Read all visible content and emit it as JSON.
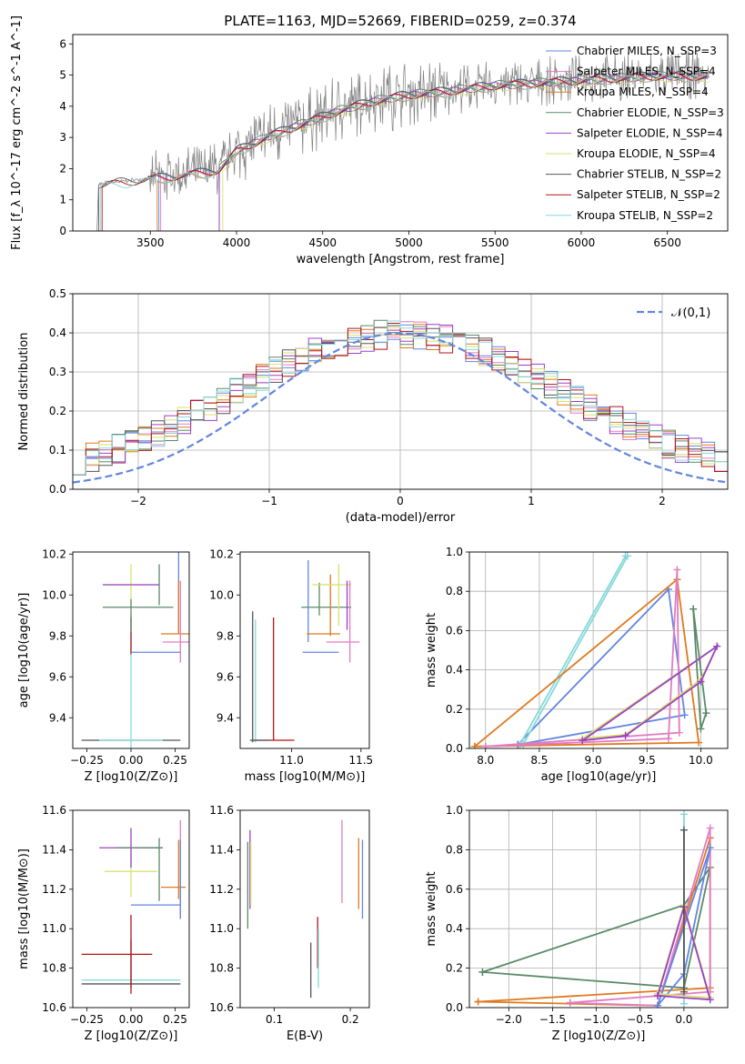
{
  "title": "PLATE=1163, MJD=52669, FIBERID=0259, z=0.374",
  "colors": {
    "chabrier_miles": "#6286e0",
    "salpeter_miles": "#e27bc2",
    "kroupa_miles": "#e0791f",
    "chabrier_elodie": "#5a8a68",
    "salpeter_elodie": "#9b40c8",
    "kroupa_elodie": "#d7e16a",
    "chabrier_stelib": "#555555",
    "salpeter_stelib": "#b01515",
    "kroupa_stelib": "#86d8d8",
    "data": "#808080",
    "grid": "#b0b0b0"
  },
  "legend_entries": [
    "Chabrier MILES, N_SSP=3",
    "Salpeter MILES, N_SSP=4",
    "Kroupa MILES, N_SSP=4",
    "Chabrier ELODIE, N_SSP=3",
    "Salpeter ELODIE, N_SSP=4",
    "Kroupa ELODIE, N_SSP=4",
    "Chabrier STELIB, N_SSP=2",
    "Salpeter STELIB, N_SSP=2",
    "Kroupa STELIB, N_SSP=2"
  ],
  "chart_data": [
    {
      "id": "spectrum",
      "type": "line",
      "xlabel": "wavelength [Angstrom, rest frame]",
      "ylabel": "Flux [f_λ 10^-17 erg cm^-2 s^-1 A^-1]",
      "xlim": [
        3050,
        6850
      ],
      "ylim": [
        0,
        6.3
      ],
      "xticks": [
        3500,
        4000,
        4500,
        5000,
        5500,
        6000,
        6500
      ],
      "yticks": [
        0,
        1,
        2,
        3,
        4,
        5,
        6
      ],
      "grid": false,
      "legend_position": "top-right",
      "continuum": {
        "x": [
          3200,
          3350,
          3500,
          3650,
          3800,
          3900,
          4000,
          4200,
          4400,
          4600,
          4800,
          5000,
          5200,
          5500,
          5800,
          6100,
          6400,
          6750
        ],
        "y": [
          1.5,
          1.6,
          1.7,
          1.8,
          1.9,
          2.0,
          2.6,
          3.1,
          3.5,
          3.9,
          4.2,
          4.4,
          4.5,
          4.7,
          4.8,
          4.9,
          5.0,
          5.0
        ]
      },
      "model_start_x": [
        3550,
        3560,
        3540,
        3900,
        3900,
        3920,
        3200,
        3220,
        3210
      ]
    },
    {
      "id": "residuals",
      "type": "line",
      "xlabel": "(data-model)/error",
      "ylabel": "Normed distribution",
      "xlim": [
        -2.5,
        2.5
      ],
      "ylim": [
        0,
        0.5
      ],
      "xticks": [
        -2,
        -1,
        0,
        1,
        2
      ],
      "yticks": [
        0,
        0.1,
        0.2,
        0.3,
        0.4,
        0.5
      ],
      "grid": true,
      "legend_position": "top-right",
      "gaussian_label": "𝒩(0,1)",
      "bin_width": 0.1
    },
    {
      "id": "age_vs_Z",
      "type": "scatter",
      "xlabel": "Z [log10(Z/Z⊙)]",
      "ylabel": "age [log10(age/yr)]",
      "xlim": [
        -0.33,
        0.33
      ],
      "ylim": [
        9.25,
        10.21
      ],
      "xticks": [
        -0.25,
        0.0,
        0.25
      ],
      "yticks": [
        9.4,
        9.6,
        9.8,
        10.0,
        10.2
      ],
      "grid": false,
      "points": [
        {
          "x": 0.0,
          "xerr": 0.28,
          "y": 9.29,
          "yerr": 0.0,
          "c": "chabrier_stelib"
        },
        {
          "x": 0.0,
          "xerr": 0.18,
          "y": 9.29,
          "yerr": 0.0,
          "c": "kroupa_stelib"
        },
        {
          "x": 0.0,
          "xerr": 0.0,
          "y": 9.29,
          "yerr": 0.61,
          "c": "kroupa_stelib"
        },
        {
          "x": 0.0,
          "xerr": 0.0,
          "y": 9.8,
          "yerr": 0.09,
          "c": "salpeter_stelib"
        },
        {
          "x": 0.27,
          "xerr": 0.0,
          "y": 10.02,
          "yerr": 0.2,
          "c": "chabrier_miles"
        },
        {
          "x": 0.0,
          "xerr": 0.16,
          "y": 10.05,
          "yerr": 0.1,
          "c": "kroupa_elodie"
        },
        {
          "x": 0.0,
          "xerr": 0.16,
          "y": 10.05,
          "yerr": 0.0,
          "c": "salpeter_elodie"
        },
        {
          "x": 0.16,
          "xerr": 0.0,
          "y": 10.05,
          "yerr": 0.1,
          "c": "chabrier_elodie"
        },
        {
          "x": 0.0,
          "xerr": 0.0,
          "y": 9.9,
          "yerr": 0.08,
          "c": "chabrier_elodie"
        },
        {
          "x": 0.04,
          "xerr": 0.2,
          "y": 9.94,
          "yerr": 0.0,
          "c": "chabrier_elodie"
        },
        {
          "x": 0.27,
          "xerr": 0.0,
          "y": 9.94,
          "yerr": 0.13,
          "c": "kroupa_miles"
        },
        {
          "x": 0.27,
          "xerr": 0.1,
          "y": 9.81,
          "yerr": 0.0,
          "c": "kroupa_miles"
        },
        {
          "x": 0.27,
          "xerr": 0.0,
          "y": 9.81,
          "yerr": 0.0,
          "c": "kroupa_elodie"
        },
        {
          "x": 0.28,
          "xerr": 0.1,
          "y": 9.77,
          "yerr": 0.0,
          "c": "salpeter_miles"
        },
        {
          "x": 0.28,
          "xerr": 0.0,
          "y": 9.87,
          "yerr": 0.2,
          "c": "salpeter_miles"
        },
        {
          "x": 0.14,
          "xerr": 0.14,
          "y": 9.72,
          "yerr": 0.0,
          "c": "chabrier_miles"
        }
      ]
    },
    {
      "id": "age_vs_mass",
      "type": "scatter",
      "xlabel": "mass [log10(M/M⊙)]",
      "ylabel": "",
      "xlim": [
        10.63,
        11.56
      ],
      "ylim": [
        9.25,
        10.21
      ],
      "xticks": [
        11.0,
        11.5
      ],
      "yticks": [
        9.4,
        9.6,
        9.8,
        10.0,
        10.2
      ],
      "grid": false,
      "points": [
        {
          "x": 10.72,
          "xerr": 0.0,
          "y": 9.6,
          "yerr": 0.32,
          "c": "chabrier_stelib"
        },
        {
          "x": 10.74,
          "xerr": 0.0,
          "y": 9.58,
          "yerr": 0.3,
          "c": "kroupa_stelib"
        },
        {
          "x": 10.87,
          "xerr": 0.0,
          "y": 9.59,
          "yerr": 0.3,
          "c": "salpeter_stelib"
        },
        {
          "x": 10.87,
          "xerr": 0.15,
          "y": 9.29,
          "yerr": 0.0,
          "c": "salpeter_stelib"
        },
        {
          "x": 10.77,
          "xerr": 0.07,
          "y": 9.29,
          "yerr": 0.0,
          "c": "chabrier_stelib"
        },
        {
          "x": 11.12,
          "xerr": 0.0,
          "y": 9.97,
          "yerr": 0.2,
          "c": "chabrier_miles"
        },
        {
          "x": 11.21,
          "xerr": 0.13,
          "y": 9.72,
          "yerr": 0.0,
          "c": "chabrier_miles"
        },
        {
          "x": 11.2,
          "xerr": 0.0,
          "y": 9.98,
          "yerr": 0.08,
          "c": "chabrier_elodie"
        },
        {
          "x": 11.25,
          "xerr": 0.18,
          "y": 9.94,
          "yerr": 0.0,
          "c": "chabrier_elodie"
        },
        {
          "x": 11.28,
          "xerr": 0.0,
          "y": 9.95,
          "yerr": 0.15,
          "c": "kroupa_miles"
        },
        {
          "x": 11.23,
          "xerr": 0.12,
          "y": 9.81,
          "yerr": 0.0,
          "c": "kroupa_miles"
        },
        {
          "x": 11.29,
          "xerr": 0.14,
          "y": 10.05,
          "yerr": 0.0,
          "c": "kroupa_elodie"
        },
        {
          "x": 11.34,
          "xerr": 0.0,
          "y": 10.0,
          "yerr": 0.15,
          "c": "kroupa_elodie"
        },
        {
          "x": 11.4,
          "xerr": 0.0,
          "y": 9.95,
          "yerr": 0.12,
          "c": "salpeter_elodie"
        },
        {
          "x": 11.42,
          "xerr": 0.0,
          "y": 9.87,
          "yerr": 0.2,
          "c": "salpeter_miles"
        },
        {
          "x": 11.37,
          "xerr": 0.12,
          "y": 9.77,
          "yerr": 0.0,
          "c": "salpeter_miles"
        }
      ]
    },
    {
      "id": "weight_vs_age",
      "type": "line",
      "xlabel": "age [log10(age/yr)]",
      "ylabel": "mass weight",
      "xlim": [
        7.85,
        10.25
      ],
      "ylim": [
        0,
        1.0
      ],
      "xticks": [
        8.0,
        8.5,
        9.0,
        9.5,
        10.0
      ],
      "yticks": [
        0.0,
        0.2,
        0.4,
        0.6,
        0.8,
        1.0
      ],
      "grid": true,
      "series": [
        {
          "c": "chabrier_miles",
          "x": [
            8.3,
            9.7,
            9.85,
            8.3
          ],
          "y": [
            0.02,
            0.81,
            0.17,
            0.02
          ]
        },
        {
          "c": "kroupa_stelib",
          "x": [
            8.32,
            9.3,
            8.32
          ],
          "y": [
            0.02,
            0.98,
            0.02
          ]
        },
        {
          "c": "kroupa_stelib",
          "x": [
            8.35,
            9.32,
            8.35
          ],
          "y": [
            0.02,
            0.98,
            0.02
          ]
        },
        {
          "c": "kroupa_miles",
          "x": [
            7.9,
            9.78,
            9.98,
            7.9
          ],
          "y": [
            0.01,
            0.86,
            0.03,
            0.01
          ]
        },
        {
          "c": "salpeter_miles",
          "x": [
            8.0,
            9.7,
            9.78,
            9.8,
            8.0
          ],
          "y": [
            0.01,
            0.05,
            0.91,
            0.08,
            0.01
          ]
        },
        {
          "c": "chabrier_elodie",
          "x": [
            9.93,
            10.0,
            10.05,
            9.93
          ],
          "y": [
            0.71,
            0.1,
            0.18,
            0.71
          ]
        },
        {
          "c": "kroupa_elodie",
          "x": [
            8.9,
            9.3,
            10.0,
            10.15,
            8.9
          ],
          "y": [
            0.05,
            0.07,
            0.35,
            0.52,
            0.05
          ]
        },
        {
          "c": "salpeter_elodie",
          "x": [
            8.9,
            9.3,
            10.0,
            10.15,
            8.9
          ],
          "y": [
            0.04,
            0.065,
            0.34,
            0.52,
            0.04
          ]
        }
      ]
    },
    {
      "id": "mass_vs_Z",
      "type": "scatter",
      "xlabel": "Z [log10(Z/Z⊙)]",
      "ylabel": "mass [log10(M/M⊙)]",
      "xlim": [
        -0.33,
        0.33
      ],
      "ylim": [
        10.6,
        11.6
      ],
      "xticks": [
        -0.25,
        0.0,
        0.25
      ],
      "yticks": [
        10.6,
        10.8,
        11.0,
        11.2,
        11.4,
        11.6
      ],
      "grid": false,
      "points": [
        {
          "x": 0.0,
          "xerr": 0.28,
          "y": 10.72,
          "yerr": 0.0,
          "c": "chabrier_stelib"
        },
        {
          "x": 0.0,
          "xerr": 0.28,
          "y": 10.74,
          "yerr": 0.0,
          "c": "kroupa_stelib"
        },
        {
          "x": 0.0,
          "xerr": 0.0,
          "y": 10.82,
          "yerr": 0.12,
          "c": "chabrier_stelib"
        },
        {
          "x": 0.0,
          "xerr": 0.0,
          "y": 10.87,
          "yerr": 0.2,
          "c": "salpeter_stelib"
        },
        {
          "x": -0.08,
          "xerr": 0.2,
          "y": 10.87,
          "yerr": 0.0,
          "c": "salpeter_stelib"
        },
        {
          "x": 0.0,
          "xerr": 0.15,
          "y": 11.29,
          "yerr": 0.13,
          "c": "kroupa_elodie"
        },
        {
          "x": 0.0,
          "xerr": 0.18,
          "y": 11.41,
          "yerr": 0.1,
          "c": "salpeter_elodie"
        },
        {
          "x": 0.05,
          "xerr": 0.13,
          "y": 11.41,
          "yerr": 0.0,
          "c": "chabrier_elodie"
        },
        {
          "x": 0.16,
          "xerr": 0.0,
          "y": 11.3,
          "yerr": 0.16,
          "c": "chabrier_elodie"
        },
        {
          "x": 0.27,
          "xerr": 0.0,
          "y": 11.3,
          "yerr": 0.15,
          "c": "kroupa_miles"
        },
        {
          "x": 0.24,
          "xerr": 0.07,
          "y": 11.21,
          "yerr": 0.0,
          "c": "kroupa_miles"
        },
        {
          "x": 0.28,
          "xerr": 0.0,
          "y": 11.3,
          "yerr": 0.25,
          "c": "salpeter_miles"
        },
        {
          "x": 0.28,
          "xerr": 0.0,
          "y": 11.25,
          "yerr": 0.2,
          "c": "chabrier_miles"
        },
        {
          "x": 0.14,
          "xerr": 0.14,
          "y": 11.12,
          "yerr": 0.0,
          "c": "chabrier_miles"
        }
      ]
    },
    {
      "id": "mass_vs_ebv",
      "type": "scatter",
      "xlabel": "E(B-V)",
      "ylabel": "",
      "xlim": [
        0.055,
        0.225
      ],
      "ylim": [
        10.6,
        11.6
      ],
      "xticks": [
        0.1,
        0.2
      ],
      "yticks": [
        10.6,
        10.8,
        11.0,
        11.2,
        11.4,
        11.6
      ],
      "grid": false,
      "points": [
        {
          "x": 0.065,
          "xerr": 0.0,
          "y": 11.22,
          "yerr": 0.22,
          "c": "chabrier_elodie"
        },
        {
          "x": 0.068,
          "xerr": 0.0,
          "y": 11.3,
          "yerr": 0.2,
          "c": "salpeter_elodie"
        },
        {
          "x": 0.069,
          "xerr": 0.0,
          "y": 11.28,
          "yerr": 0.16,
          "c": "kroupa_elodie"
        },
        {
          "x": 0.148,
          "xerr": 0.0,
          "y": 10.79,
          "yerr": 0.14,
          "c": "chabrier_stelib"
        },
        {
          "x": 0.157,
          "xerr": 0.0,
          "y": 10.93,
          "yerr": 0.13,
          "c": "salpeter_stelib"
        },
        {
          "x": 0.158,
          "xerr": 0.0,
          "y": 10.85,
          "yerr": 0.15,
          "c": "kroupa_stelib"
        },
        {
          "x": 0.189,
          "xerr": 0.0,
          "y": 11.34,
          "yerr": 0.21,
          "c": "salpeter_miles"
        },
        {
          "x": 0.211,
          "xerr": 0.0,
          "y": 11.28,
          "yerr": 0.18,
          "c": "kroupa_miles"
        },
        {
          "x": 0.216,
          "xerr": 0.0,
          "y": 11.25,
          "yerr": 0.2,
          "c": "chabrier_miles"
        }
      ]
    },
    {
      "id": "weight_vs_Z",
      "type": "line",
      "xlabel": "Z [log10(Z/Z⊙)]",
      "ylabel": "mass weight",
      "xlim": [
        -2.45,
        0.5
      ],
      "ylim": [
        0,
        1.0
      ],
      "xticks": [
        -2.0,
        -1.5,
        -1.0,
        -0.5,
        0.0
      ],
      "yticks": [
        0.0,
        0.2,
        0.4,
        0.6,
        0.8,
        1.0
      ],
      "grid": true,
      "series": [
        {
          "c": "chabrier_elodie",
          "x": [
            -2.3,
            0.0,
            0.3,
            0.0,
            -2.3
          ],
          "y": [
            0.18,
            0.1,
            0.71,
            0.52,
            0.18
          ]
        },
        {
          "c": "kroupa_miles",
          "x": [
            -2.35,
            -0.3,
            0.3,
            0.3,
            -2.35
          ],
          "y": [
            0.03,
            0.01,
            0.86,
            0.1,
            0.03
          ]
        },
        {
          "c": "salpeter_miles",
          "x": [
            -1.3,
            -0.3,
            0.3,
            0.3,
            -1.3
          ],
          "y": [
            0.025,
            0.01,
            0.91,
            0.08,
            0.025
          ]
        },
        {
          "c": "chabrier_miles",
          "x": [
            -0.3,
            0.0,
            0.3,
            -0.3
          ],
          "y": [
            0.01,
            0.17,
            0.81,
            0.01
          ]
        },
        {
          "c": "kroupa_stelib",
          "x": [
            0.0,
            0.0
          ],
          "y": [
            0.02,
            0.98
          ]
        },
        {
          "c": "kroupa_elodie",
          "x": [
            -0.3,
            0.0,
            0.3,
            -0.3
          ],
          "y": [
            0.07,
            0.52,
            0.05,
            0.07
          ]
        },
        {
          "c": "salpeter_elodie",
          "x": [
            -0.3,
            0.0,
            0.3,
            -0.3
          ],
          "y": [
            0.06,
            0.51,
            0.04,
            0.06
          ]
        },
        {
          "c": "chabrier_stelib",
          "x": [
            0.0,
            0.0
          ],
          "y": [
            0.08,
            0.9
          ]
        }
      ]
    }
  ]
}
